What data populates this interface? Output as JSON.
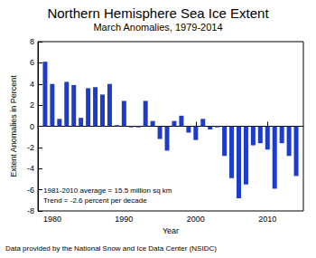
{
  "chart_data": {
    "type": "bar",
    "title": "Northern Hemisphere Sea Ice Extent",
    "subtitle": "March Anomalies, 1979-2014",
    "x_label": "Year",
    "y_label": "Extent Anomalies in Percent",
    "x": [
      1979,
      1980,
      1981,
      1982,
      1983,
      1984,
      1985,
      1986,
      1987,
      1988,
      1989,
      1990,
      1991,
      1992,
      1993,
      1994,
      1995,
      1996,
      1997,
      1998,
      1999,
      2000,
      2001,
      2002,
      2003,
      2004,
      2005,
      2006,
      2007,
      2008,
      2009,
      2010,
      2011,
      2012,
      2013,
      2014
    ],
    "values": [
      6.1,
      4.0,
      0.7,
      4.2,
      3.9,
      0.8,
      3.6,
      3.7,
      3.0,
      4.0,
      0.1,
      2.4,
      -0.1,
      -0.1,
      2.4,
      0.5,
      -1.2,
      -2.3,
      0.5,
      1.0,
      -0.6,
      -1.3,
      0.7,
      -0.3,
      -0.1,
      -2.8,
      -4.9,
      -6.8,
      -5.5,
      -1.8,
      -1.6,
      -2.2,
      -5.9,
      -1.6,
      -2.8,
      -4.7
    ],
    "color": "#1f3cc8",
    "xlim": [
      1978,
      2015
    ],
    "xticks": [
      1980,
      1990,
      2000,
      2010
    ],
    "ylim": [
      -8,
      8
    ],
    "yticks": [
      -8,
      -6,
      -4,
      -2,
      0,
      2,
      4,
      6,
      8
    ],
    "grid": false,
    "annotations": [
      "1981-2010 average = 15.5 million sq km",
      "Trend = -2.6 percent per decade"
    ],
    "caption": "Data provided by the National Snow and Ice Data Center (NSIDC)"
  }
}
